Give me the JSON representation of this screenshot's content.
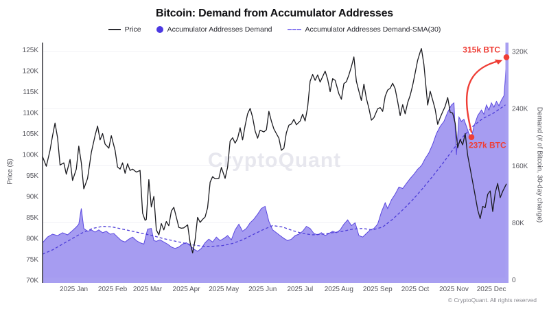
{
  "header": {
    "title": "Bitcoin: Demand from Accumulator Addresses"
  },
  "legend": {
    "items": [
      {
        "label": "Price",
        "swatch": "line",
        "color": "#2b2b30"
      },
      {
        "label": "Accumulator Addresses Demand",
        "swatch": "dot",
        "color": "#4c39e2"
      },
      {
        "label": "Accumulator Addresses Demand-SMA(30)",
        "swatch": "dash",
        "color": "#8a7cf0"
      }
    ]
  },
  "watermark": "CryptoQuant",
  "footer": {
    "copyright": "© CryptoQuant. All rights reserved"
  },
  "colors": {
    "price_line": "#1a1a1f",
    "area_fill": "#a69cf1",
    "area_edge": "#5a48df",
    "sma_line": "#4d3dd8",
    "axis_strip": "#a89ff1",
    "left_axis_line": "#3f3f46",
    "gridline": "#f0f0f5",
    "tick_text": "#55555c",
    "annotation_red": "#ef3e36",
    "watermark": "#e7e7ee"
  },
  "chart_data": {
    "type": "area",
    "title": "Bitcoin: Demand from Accumulator Addresses",
    "day_span": 371,
    "x_axis": {
      "tick_labels": [
        "2025 Jan",
        "2025 Feb",
        "2025 Mar",
        "2025 Apr",
        "2025 May",
        "2025 Jun",
        "2025 Jul",
        "2025 Aug",
        "2025 Sep",
        "2025 Oct",
        "2025 Nov",
        "2025 Dec"
      ],
      "tick_days": [
        25,
        56,
        84,
        115,
        145,
        176,
        206,
        237,
        268,
        298,
        329,
        359
      ]
    },
    "left_axis": {
      "label": "Price ($)",
      "tick_labels": [
        "70K",
        "75K",
        "80K",
        "85K",
        "90K",
        "95K",
        "100K",
        "105K",
        "110K",
        "115K",
        "120K",
        "125K"
      ],
      "tick_values": [
        70,
        75,
        80,
        85,
        90,
        95,
        100,
        105,
        110,
        115,
        120,
        125
      ],
      "range": [
        70,
        125
      ]
    },
    "right_axis": {
      "label": "Demand (# of Bitcoin, 30-day change)",
      "tick_labels": [
        "0",
        "80K",
        "160K",
        "240K",
        "320K"
      ],
      "tick_values": [
        0,
        80,
        160,
        240,
        320
      ],
      "range": [
        0,
        320
      ]
    },
    "series": [
      {
        "name": "Price",
        "type": "line",
        "axis": "left",
        "unit": "USD (thousands)",
        "days": [
          0,
          3,
          6,
          8,
          10,
          12,
          14,
          17,
          19,
          22,
          24,
          27,
          29,
          31,
          33,
          36,
          39,
          42,
          44,
          46,
          48,
          50,
          53,
          55,
          58,
          60,
          62,
          64,
          66,
          68,
          70,
          72,
          75,
          78,
          80,
          82,
          83,
          85,
          87,
          89,
          91,
          93,
          95,
          97,
          99,
          101,
          103,
          105,
          107,
          109,
          111,
          113,
          116,
          118,
          120,
          122,
          124,
          126,
          128,
          130,
          132,
          134,
          136,
          138,
          141,
          143,
          146,
          148,
          150,
          152,
          154,
          156,
          158,
          160,
          162,
          164,
          166,
          168,
          170,
          172,
          174,
          177,
          179,
          181,
          183,
          185,
          187,
          189,
          191,
          193,
          195,
          197,
          199,
          201,
          203,
          206,
          208,
          210,
          212,
          214,
          216,
          218,
          220,
          222,
          224,
          226,
          228,
          230,
          232,
          234,
          237,
          239,
          241,
          243,
          245,
          247,
          249,
          251,
          253,
          255,
          257,
          259,
          261,
          263,
          265,
          268,
          270,
          272,
          274,
          276,
          278,
          280,
          282,
          284,
          286,
          288,
          290,
          292,
          294,
          296,
          298,
          300,
          302,
          303,
          305,
          307,
          308,
          310,
          312,
          314,
          316,
          318,
          320,
          322,
          324,
          326,
          328,
          330,
          332,
          334,
          336,
          338,
          340,
          342,
          344,
          346,
          348,
          350,
          352,
          354,
          356,
          358,
          360,
          362,
          364,
          366,
          368,
          371
        ],
        "values": [
          99.5,
          97.2,
          101.0,
          104.5,
          107.5,
          104.0,
          97.5,
          98.0,
          95.3,
          98.8,
          93.8,
          96.5,
          102.0,
          98.0,
          91.8,
          94.3,
          100.5,
          104.5,
          106.8,
          103.5,
          105.0,
          102.5,
          101.5,
          104.5,
          101.0,
          97.0,
          96.5,
          98.0,
          95.5,
          97.8,
          96.2,
          96.5,
          95.8,
          96.2,
          86.0,
          84.3,
          84.5,
          94.0,
          87.5,
          90.0,
          82.0,
          80.8,
          83.5,
          82.0,
          84.0,
          83.0,
          86.5,
          87.4,
          85.0,
          82.6,
          82.4,
          82.5,
          83.2,
          79.0,
          76.5,
          79.6,
          85.0,
          83.8,
          84.5,
          85.1,
          87.3,
          93.4,
          94.7,
          94.2,
          94.3,
          96.9,
          94.3,
          97.0,
          103.2,
          104.0,
          102.7,
          103.8,
          106.4,
          103.5,
          106.9,
          109.7,
          111.0,
          108.9,
          105.6,
          103.9,
          105.8,
          105.4,
          105.9,
          110.3,
          108.0,
          106.1,
          105.0,
          103.9,
          101.0,
          101.5,
          105.2,
          107.0,
          107.3,
          108.4,
          107.1,
          108.0,
          109.6,
          108.0,
          111.3,
          117.5,
          119.1,
          117.7,
          119.0,
          117.3,
          118.6,
          119.9,
          118.0,
          115.0,
          118.1,
          117.7,
          114.5,
          113.2,
          116.9,
          117.4,
          119.0,
          121.0,
          123.3,
          117.5,
          115.1,
          112.9,
          116.8,
          113.4,
          111.0,
          108.2,
          108.8,
          110.9,
          111.2,
          110.3,
          113.9,
          115.4,
          115.8,
          117.0,
          115.7,
          112.6,
          109.3,
          111.9,
          109.7,
          112.4,
          114.1,
          116.5,
          119.5,
          122.5,
          124.5,
          125.3,
          121.5,
          115.0,
          111.8,
          115.1,
          113.0,
          110.8,
          107.2,
          108.8,
          110.2,
          111.5,
          113.6,
          110.1,
          109.9,
          107.5,
          101.6,
          103.6,
          102.3,
          105.0,
          99.8,
          96.6,
          93.4,
          90.2,
          86.8,
          84.7,
          87.6,
          87.3,
          90.5,
          91.3,
          86.4,
          90.8,
          93.1,
          89.7,
          91.2,
          93.0
        ]
      },
      {
        "name": "Accumulator Addresses Demand",
        "type": "area",
        "axis": "right",
        "unit": "BTC (thousands)",
        "days": [
          0,
          4,
          8,
          12,
          16,
          20,
          24,
          27,
          29,
          31,
          33,
          36,
          39,
          42,
          45,
          48,
          51,
          54,
          57,
          60,
          63,
          66,
          69,
          72,
          75,
          78,
          81,
          84,
          87,
          89,
          91,
          94,
          97,
          100,
          103,
          106,
          109,
          112,
          115,
          118,
          121,
          124,
          127,
          130,
          133,
          136,
          139,
          142,
          145,
          148,
          151,
          154,
          157,
          160,
          163,
          166,
          169,
          172,
          175,
          178,
          181,
          184,
          187,
          190,
          193,
          196,
          199,
          202,
          205,
          208,
          211,
          214,
          217,
          220,
          223,
          226,
          229,
          232,
          235,
          238,
          241,
          244,
          247,
          250,
          253,
          256,
          259,
          262,
          265,
          268,
          271,
          274,
          276,
          279,
          282,
          285,
          288,
          291,
          294,
          297,
          300,
          303,
          306,
          309,
          312,
          315,
          318,
          321,
          324,
          327,
          329,
          331,
          333,
          335,
          337,
          339,
          341,
          343,
          345,
          348,
          351,
          353,
          355,
          357,
          359,
          361,
          363,
          365,
          367,
          369,
          370,
          371
        ],
        "values": [
          52,
          60,
          64,
          62,
          66,
          63,
          69,
          74,
          78,
          100,
          72,
          68,
          70,
          67,
          70,
          66,
          68,
          64,
          65,
          60,
          55,
          53,
          57,
          60,
          55,
          52,
          50,
          71,
          72,
          55,
          54,
          56,
          53,
          50,
          46,
          44,
          46,
          50,
          52,
          48,
          43,
          40,
          44,
          52,
          57,
          53,
          60,
          55,
          58,
          62,
          56,
          70,
          78,
          68,
          72,
          80,
          85,
          92,
          100,
          103,
          82,
          70,
          66,
          62,
          58,
          55,
          57,
          62,
          64,
          68,
          75,
          72,
          65,
          63,
          66,
          62,
          65,
          68,
          66,
          70,
          78,
          84,
          76,
          80,
          62,
          60,
          65,
          70,
          72,
          78,
          95,
          108,
          100,
          112,
          120,
          130,
          128,
          135,
          142,
          148,
          155,
          160,
          170,
          178,
          190,
          205,
          215,
          222,
          235,
          245,
          248,
          175,
          228,
          222,
          225,
          215,
          205,
          200,
          215,
          230,
          238,
          232,
          245,
          238,
          248,
          242,
          250,
          244,
          252,
          258,
          280,
          315
        ]
      },
      {
        "name": "Accumulator Addresses Demand-SMA(30)",
        "type": "dashed-line",
        "axis": "right",
        "unit": "BTC (thousands)",
        "days": [
          0,
          8,
          16,
          24,
          32,
          40,
          48,
          56,
          64,
          72,
          80,
          88,
          96,
          104,
          112,
          120,
          128,
          136,
          144,
          152,
          160,
          168,
          176,
          184,
          192,
          200,
          208,
          216,
          224,
          232,
          240,
          248,
          256,
          264,
          272,
          280,
          288,
          296,
          304,
          312,
          320,
          328,
          336,
          344,
          352,
          360,
          366,
          371
        ],
        "values": [
          36,
          42,
          50,
          58,
          66,
          72,
          75,
          74,
          71,
          68,
          65,
          62,
          58,
          55,
          52,
          49,
          47,
          47,
          48,
          51,
          56,
          63,
          70,
          76,
          74,
          69,
          65,
          63,
          64,
          66,
          68,
          71,
          72,
          70,
          74,
          85,
          98,
          112,
          128,
          145,
          163,
          182,
          200,
          215,
          226,
          233,
          240,
          246
        ]
      }
    ],
    "annotations": [
      {
        "label": "315k BTC",
        "day": 371,
        "value": 312,
        "placement": "above-left"
      },
      {
        "label": "237k BTC",
        "day": 343,
        "value": 200,
        "placement": "below-right"
      }
    ],
    "arrow": {
      "from_day": 343,
      "from_value": 207,
      "to_day": 366,
      "to_value": 310
    }
  }
}
